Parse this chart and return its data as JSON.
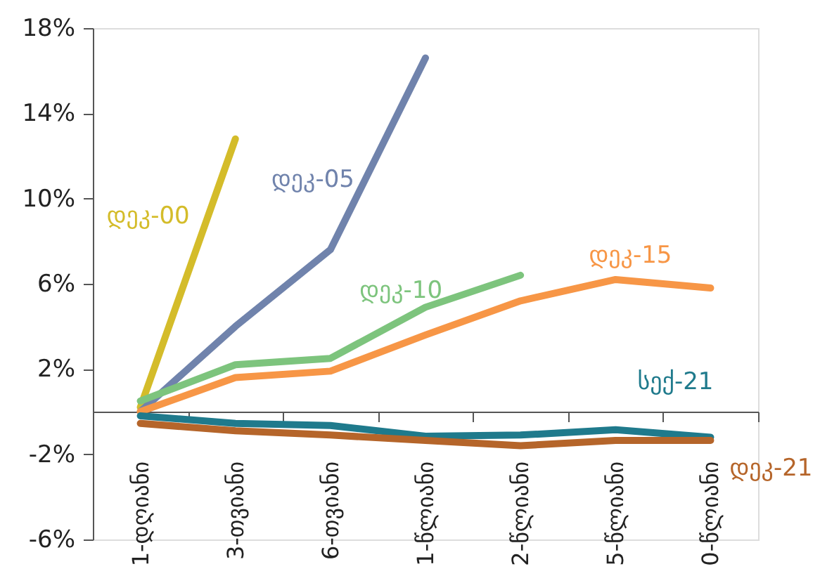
{
  "chart_data": {
    "type": "line",
    "categories": [
      "1-დღიანი",
      "3-თვიანი",
      "6-თვიანი",
      "1-წლიანი",
      "2-წლიანი",
      "5-წლიანი",
      "0-წლიანი"
    ],
    "series": [
      {
        "name": "დეკ-00",
        "color": "#d4bc2a",
        "values": [
          0.2,
          12.8,
          null,
          null,
          null,
          null,
          null
        ]
      },
      {
        "name": "დეკ-05",
        "color": "#7083ac",
        "values": [
          0.0,
          4.0,
          7.6,
          16.6,
          null,
          null,
          null
        ]
      },
      {
        "name": "დეკ-10",
        "color": "#7dc47d",
        "values": [
          0.5,
          2.2,
          2.5,
          4.9,
          6.4,
          null,
          null
        ]
      },
      {
        "name": "დეკ-15",
        "color": "#f79646",
        "values": [
          0.0,
          1.6,
          1.9,
          3.6,
          5.2,
          6.2,
          5.8
        ]
      },
      {
        "name": "სექ-21",
        "color": "#1f7a8c",
        "values": [
          -0.2,
          -0.55,
          -0.65,
          -1.15,
          -1.1,
          -0.85,
          -1.2
        ]
      },
      {
        "name": "დეკ-21",
        "color": "#b5652a",
        "values": [
          -0.55,
          -0.9,
          -1.1,
          -1.35,
          -1.6,
          -1.35,
          -1.35
        ]
      }
    ],
    "ylim": [
      -6,
      18
    ],
    "yticks": [
      {
        "value": -6,
        "label": "-6%"
      },
      {
        "value": -2,
        "label": "-2%"
      },
      {
        "value": 2,
        "label": "2%"
      },
      {
        "value": 6,
        "label": "6%"
      },
      {
        "value": 10,
        "label": "10%"
      },
      {
        "value": 14,
        "label": "14%"
      },
      {
        "value": 18,
        "label": "18%"
      }
    ],
    "grid": false,
    "marker": "none",
    "line_style": "solid"
  }
}
